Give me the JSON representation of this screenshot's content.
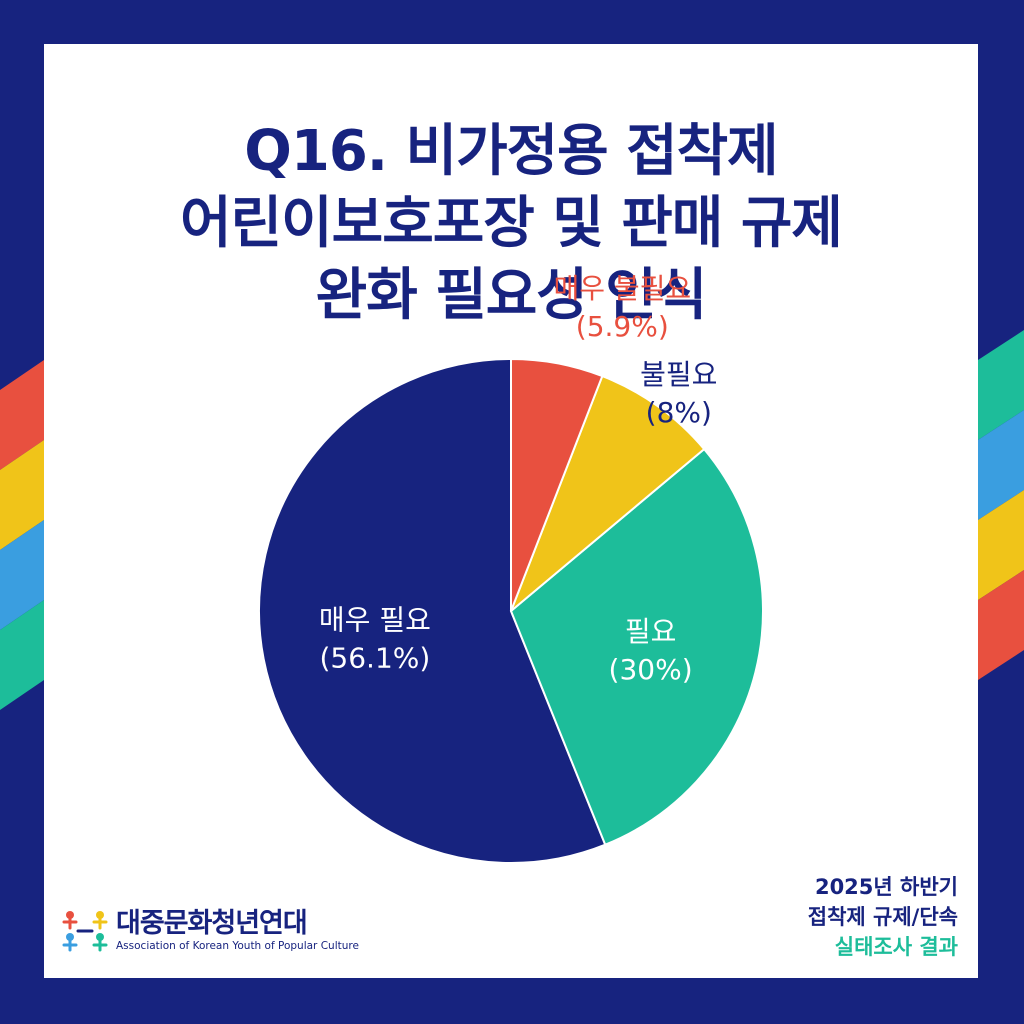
{
  "title": {
    "line1": "Q16. 비가정용 접착제",
    "line2": "어린이보호포장 및 판매 규제",
    "line3": "완화 필요성 인식"
  },
  "chart_data": {
    "type": "pie",
    "start_angle_deg": 90,
    "direction": "counterclockwise",
    "slices": [
      {
        "label": "매우 필요",
        "value": 56.1,
        "value_label": "(56.1%)",
        "color": "#17237f",
        "label_color": "#ffffff"
      },
      {
        "label": "필요",
        "value": 30,
        "value_label": "(30%)",
        "color": "#1dbd9a",
        "label_color": "#ffffff"
      },
      {
        "label": "불필요",
        "value": 8,
        "value_label": "(8%)",
        "color": "#f0c419",
        "label_color": "#17237f"
      },
      {
        "label": "매우 불필요",
        "value": 5.9,
        "value_label": "(5.9%)",
        "color": "#e8503f",
        "label_color": "#e8503f"
      }
    ]
  },
  "footer": {
    "line1": "2025년 하반기",
    "line2": "접착제 규제/단속",
    "line3": "실태조사 결과"
  },
  "org": {
    "name": "대중문화청년연대",
    "subtitle": "Association of Korean Youth of Popular Culture"
  },
  "colors": {
    "navy": "#17237f",
    "teal": "#1dbd9a",
    "yellow": "#f0c419",
    "red": "#e8503f",
    "blue": "#3a9ee0"
  }
}
